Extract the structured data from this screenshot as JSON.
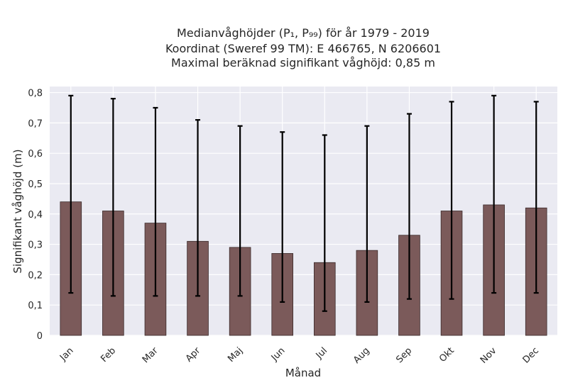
{
  "chart_data": {
    "type": "bar",
    "title_lines": [
      "Medianvåghöjder (P₁, P₉₉) för år 1979 - 2019",
      "Koordinat (Sweref 99 TM): E 466765, N 6206601",
      "Maximal beräknad signifikant våghöjd: 0,85 m"
    ],
    "xlabel": "Månad",
    "ylabel": "Signifikant våghöjd (m)",
    "categories": [
      "Jan",
      "Feb",
      "Mar",
      "Apr",
      "Maj",
      "Jun",
      "Jul",
      "Aug",
      "Sep",
      "Okt",
      "Nov",
      "Dec"
    ],
    "values": [
      0.44,
      0.41,
      0.37,
      0.31,
      0.29,
      0.27,
      0.24,
      0.28,
      0.33,
      0.41,
      0.43,
      0.42
    ],
    "error_low": [
      0.14,
      0.13,
      0.13,
      0.13,
      0.13,
      0.11,
      0.08,
      0.11,
      0.12,
      0.12,
      0.14,
      0.14
    ],
    "error_high": [
      0.79,
      0.78,
      0.75,
      0.71,
      0.69,
      0.67,
      0.66,
      0.69,
      0.73,
      0.77,
      0.79,
      0.77
    ],
    "ylim": [
      0,
      0.82
    ],
    "yticks": [
      0,
      0.1,
      0.2,
      0.3,
      0.4,
      0.5,
      0.6,
      0.7,
      0.8
    ],
    "ytick_labels": [
      "0",
      "0,1",
      "0,2",
      "0,3",
      "0,4",
      "0,5",
      "0,6",
      "0,7",
      "0,8"
    ],
    "grid": true,
    "colors": {
      "bar": "#7b5a5a",
      "bar_edge": "#3a2a2a",
      "plot_bg": "#eaeaf2",
      "grid": "#ffffff",
      "error": "#000000"
    }
  }
}
